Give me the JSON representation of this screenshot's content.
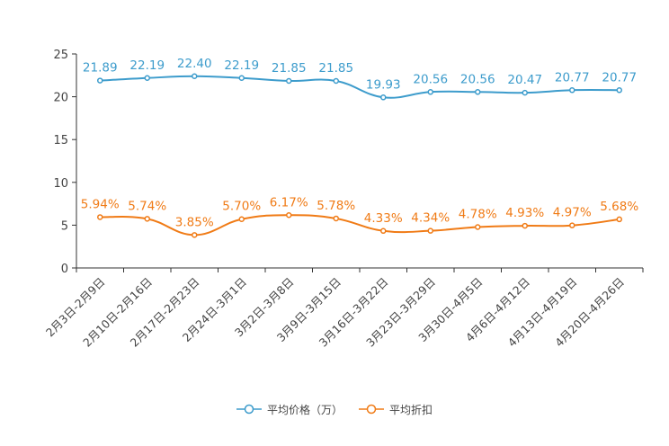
{
  "chart_data": {
    "type": "line",
    "categories": [
      "2月3日-2月9日",
      "2月10日-2月16日",
      "2月17日-2月23日",
      "2月24日-3月1日",
      "3月2日-3月8日",
      "3月9日-3月15日",
      "3月16日-3月22日",
      "3月23日-3月29日",
      "3月30日-4月5日",
      "4月6日-4月12日",
      "4月13日-4月19日",
      "4月20日-4月26日"
    ],
    "ylim": [
      0,
      25
    ],
    "yticks": [
      "0",
      "5",
      "10",
      "15",
      "20",
      "25"
    ],
    "series": [
      {
        "name": "平均价格（万）",
        "color": "#3d9ccc",
        "values": [
          21.89,
          22.19,
          22.4,
          22.19,
          21.85,
          21.85,
          19.93,
          20.56,
          20.56,
          20.47,
          20.77,
          20.77
        ],
        "labels": [
          "21.89",
          "22.19",
          "22.40",
          "22.19",
          "21.85",
          "21.85",
          "19.93",
          "20.56",
          "20.56",
          "20.47",
          "20.77",
          "20.77"
        ]
      },
      {
        "name": "平均折扣",
        "color": "#f07b16",
        "values": [
          5.94,
          5.74,
          3.85,
          5.7,
          6.17,
          5.78,
          4.33,
          4.34,
          4.78,
          4.93,
          4.97,
          5.68
        ],
        "labels": [
          "5.94%",
          "5.74%",
          "3.85%",
          "5.70%",
          "6.17%",
          "5.78%",
          "4.33%",
          "4.34%",
          "4.78%",
          "4.93%",
          "4.97%",
          "5.68%"
        ]
      }
    ],
    "legend_position": "bottom-center",
    "grid": false
  }
}
